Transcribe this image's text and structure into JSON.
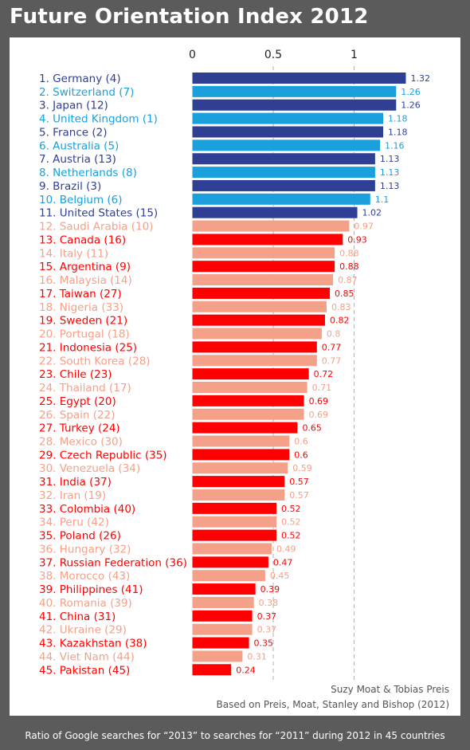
{
  "title": "Future Orientation Index 2012",
  "credit_line1": "Suzy Moat & Tobias Preis",
  "credit_line2": "Based on Preis, Moat, Stanley and Bishop (2012)",
  "footer": "Ratio of Google searches for “2013” to searches for “2011” during 2012 in 45 countries",
  "colors": {
    "navy": "#2f3f94",
    "cyan": "#1aa0dc",
    "red": "#ff0000",
    "salmon": "#f5a088",
    "background": "#5b5b5b"
  },
  "chart_data": {
    "type": "bar",
    "orientation": "horizontal",
    "title": "Future Orientation Index 2012",
    "xlim": [
      0,
      1.32
    ],
    "xticks": [
      "0",
      "0.5",
      "1"
    ],
    "tick_values": [
      0,
      0.5,
      1
    ],
    "grid": "dashed vertical at 0.5 and 1",
    "categories": [
      "1. Germany (4)",
      "2. Switzerland (7)",
      "3. Japan (12)",
      "4. United Kingdom (1)",
      "5. France (2)",
      "6. Australia (5)",
      "7. Austria (13)",
      "8. Netherlands (8)",
      "9. Brazil (3)",
      "10. Belgium (6)",
      "11. United States (15)",
      "12. Saudi Arabia (10)",
      "13. Canada (16)",
      "14. Italy (11)",
      "15. Argentina (9)",
      "16. Malaysia (14)",
      "17. Taiwan (27)",
      "18. Nigeria (33)",
      "19. Sweden (21)",
      "20. Portugal (18)",
      "21. Indonesia (25)",
      "22. South Korea (28)",
      "23. Chile (23)",
      "24. Thailand (17)",
      "25. Egypt (20)",
      "26. Spain (22)",
      "27. Turkey (24)",
      "28. Mexico (30)",
      "29. Czech Republic (35)",
      "30. Venezuela (34)",
      "31. India (37)",
      "32. Iran (19)",
      "33. Colombia (40)",
      "34. Peru (42)",
      "35. Poland (26)",
      "36. Hungary (32)",
      "37. Russian Federation (36)",
      "38. Morocco (43)",
      "39. Philippines (41)",
      "40. Romania (39)",
      "41. China (31)",
      "42. Ukraine (29)",
      "43. Kazakhstan (38)",
      "44. Viet Nam (44)",
      "45. Pakistan (45)"
    ],
    "values": [
      1.32,
      1.26,
      1.26,
      1.18,
      1.18,
      1.16,
      1.13,
      1.13,
      1.13,
      1.1,
      1.02,
      0.97,
      0.93,
      0.88,
      0.88,
      0.87,
      0.85,
      0.83,
      0.82,
      0.8,
      0.77,
      0.77,
      0.72,
      0.71,
      0.69,
      0.69,
      0.65,
      0.6,
      0.6,
      0.59,
      0.57,
      0.57,
      0.52,
      0.52,
      0.52,
      0.49,
      0.47,
      0.45,
      0.39,
      0.38,
      0.37,
      0.37,
      0.35,
      0.31,
      0.24
    ],
    "value_labels": [
      "1.32",
      "1.26",
      "1.26",
      "1.18",
      "1.18",
      "1.16",
      "1.13",
      "1.13",
      "1.13",
      "1.1",
      "1.02",
      "0.97",
      "0.93",
      "0.88",
      "0.88",
      "0.87",
      "0.85",
      "0.83",
      "0.82",
      "0.8",
      "0.77",
      "0.77",
      "0.72",
      "0.71",
      "0.69",
      "0.69",
      "0.65",
      "0.6",
      "0.6",
      "0.59",
      "0.57",
      "0.57",
      "0.52",
      "0.52",
      "0.52",
      "0.49",
      "0.47",
      "0.45",
      "0.39",
      "0.38",
      "0.37",
      "0.37",
      "0.35",
      "0.31",
      "0.24"
    ],
    "bar_colors": [
      "navy",
      "cyan"
    ],
    "bar_colors_low": [
      "red",
      "salmon"
    ]
  }
}
